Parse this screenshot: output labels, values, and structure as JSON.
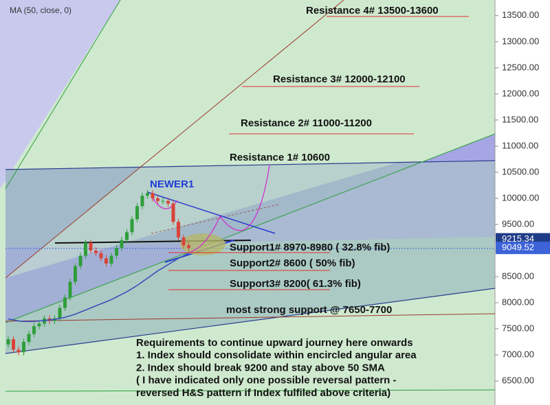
{
  "chart_data": {
    "type": "candlestick",
    "legend_label": "MA (50, close, 0)",
    "ylim": [
      6040,
      13800
    ],
    "yticks": [
      {
        "value": 6500,
        "label": "6500.00"
      },
      {
        "value": 7000,
        "label": "7000.00"
      },
      {
        "value": 7500,
        "label": "7500.00"
      },
      {
        "value": 8000,
        "label": "8000.00"
      },
      {
        "value": 8500,
        "label": "8500.00"
      },
      {
        "value": 9000,
        "label": "9000.00"
      },
      {
        "value": 9500,
        "label": "9500.00"
      },
      {
        "value": 10000,
        "label": "10000.00"
      },
      {
        "value": 10500,
        "label": "10500.00"
      },
      {
        "value": 11000,
        "label": "11000.00"
      },
      {
        "value": 11500,
        "label": "11500.00"
      },
      {
        "value": 12000,
        "label": "12000.00"
      },
      {
        "value": 12500,
        "label": "12500.00"
      },
      {
        "value": 13000,
        "label": "13000.00"
      },
      {
        "value": 13500,
        "label": "13500.00"
      }
    ],
    "up_color": "#2e9e3a",
    "down_color": "#d9433a",
    "open": [
      7200,
      7300,
      7100,
      7050,
      7250,
      7400,
      7550,
      7600,
      7700,
      7650,
      7700,
      7900,
      8100,
      8400,
      8700,
      8900,
      9150,
      9000,
      8950,
      8850,
      8750,
      8900,
      9050,
      9200,
      9350,
      9600,
      9850,
      10050,
      10100,
      10000,
      9950,
      9950,
      9900,
      9550,
      9250,
      9100
    ],
    "high": [
      7360,
      7360,
      7160,
      7310,
      7460,
      7610,
      7660,
      7760,
      7760,
      7760,
      7960,
      8160,
      8460,
      8760,
      8960,
      9210,
      9210,
      9060,
      9010,
      8910,
      8960,
      9110,
      9260,
      9410,
      9660,
      9910,
      10110,
      10160,
      10160,
      10060,
      10010,
      10010,
      9960,
      9610,
      9310,
      9160
    ],
    "low": [
      7140,
      7040,
      6990,
      6990,
      7190,
      7340,
      7490,
      7540,
      7590,
      7590,
      7640,
      7840,
      8040,
      8340,
      8640,
      8840,
      8940,
      8890,
      8790,
      8690,
      8690,
      8840,
      8990,
      9140,
      9290,
      9540,
      9790,
      9990,
      9940,
      9890,
      9890,
      9840,
      9490,
      9190,
      9040,
      8990
    ],
    "close": [
      7300,
      7100,
      7050,
      7250,
      7400,
      7550,
      7600,
      7700,
      7650,
      7700,
      7900,
      8100,
      8400,
      8700,
      8900,
      9150,
      9000,
      8950,
      8850,
      8750,
      8900,
      9050,
      9200,
      9350,
      9600,
      9850,
      10050,
      10100,
      10000,
      9950,
      9950,
      9900,
      9550,
      9250,
      9100,
      9050
    ],
    "ma": {
      "name": "MA (50, close, 0)",
      "color": "#3a4fb8",
      "values": [
        7690,
        7670,
        7650,
        7640,
        7640,
        7640,
        7650,
        7660,
        7670,
        7680,
        7700,
        7720,
        7750,
        7780,
        7820,
        7860,
        7900,
        7940,
        7980,
        8020,
        8060,
        8110,
        8160,
        8210,
        8270,
        8330,
        8400,
        8470,
        8540,
        8610,
        8670,
        8730,
        8790,
        8850,
        8900,
        8950
      ]
    },
    "price_labels": [
      9215.34,
      9049.52
    ],
    "annotations": {
      "resistance4": "Resistance 4# 13500-13600",
      "resistance3": "Resistance 3# 12000-12100",
      "resistance2": "Resistance 2# 11000-11200",
      "resistance1": "Resistance 1# 10600",
      "newer": "NEWER1",
      "support1": "Support1# 8970-8980 ( 32.8% fib)",
      "support2": "Support2# 8600 ( 50% fib)",
      "support3": "Support3# 8200( 61.3% fib)",
      "strong": "most strong support @ 7650-7700"
    },
    "requirements": [
      "Requirements to continue upward journey here onwards",
      "1. Index should consolidate within encircled angular area",
      "2. Index should break 9200 and stay above 50 SMA",
      "( I have indicated only one possible reversal pattern -",
      "reversed H&S pattern if Index fulfiled above criteria)"
    ]
  }
}
